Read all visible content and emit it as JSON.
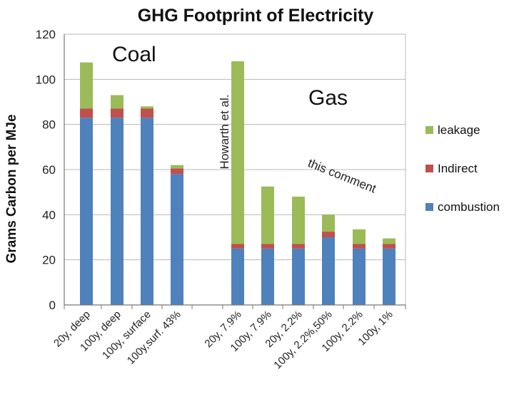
{
  "chart_data": {
    "type": "bar",
    "stacked": true,
    "title": "GHG Footprint of Electricity",
    "ylabel": "Grams Carbon per MJe",
    "xlabel": "",
    "ylim": [
      0,
      120
    ],
    "yticks": [
      0,
      20,
      40,
      60,
      80,
      100,
      120
    ],
    "grid": true,
    "legend_position": "right",
    "groups": [
      {
        "label": "Coal",
        "categories": [
          "20y, deep",
          "100y, deep",
          "100y, surface",
          "100y,surf. 43%"
        ]
      },
      {
        "label": "Gas",
        "categories": [
          "20y, 7.9%",
          "100y, 7.9%",
          "20y, 2.2%",
          "100y, 2.2%,50%",
          "100y, 2.2%",
          "100y, 1%"
        ]
      }
    ],
    "categories": [
      "20y, deep",
      "100y, deep",
      "100y, surface",
      "100y,surf. 43%",
      "20y, 7.9%",
      "100y, 7.9%",
      "20y, 2.2%",
      "100y, 2.2%,50%",
      "100y, 2.2%",
      "100y, 1%"
    ],
    "series": [
      {
        "name": "combustion",
        "color": "#4f81bd",
        "values": [
          83,
          83,
          83,
          58,
          25,
          25,
          25,
          30,
          25,
          25
        ]
      },
      {
        "name": "Indirect",
        "color": "#c0504d",
        "values": [
          4,
          4,
          4,
          2.5,
          2,
          2,
          2,
          2.5,
          2,
          2
        ]
      },
      {
        "name": "leakage",
        "color": "#9bbb59",
        "values": [
          20.5,
          6,
          1,
          1.5,
          81,
          25.5,
          21,
          7.5,
          6.5,
          2.5
        ]
      }
    ],
    "annotations": [
      "Howarth et al.",
      "this comment"
    ]
  }
}
